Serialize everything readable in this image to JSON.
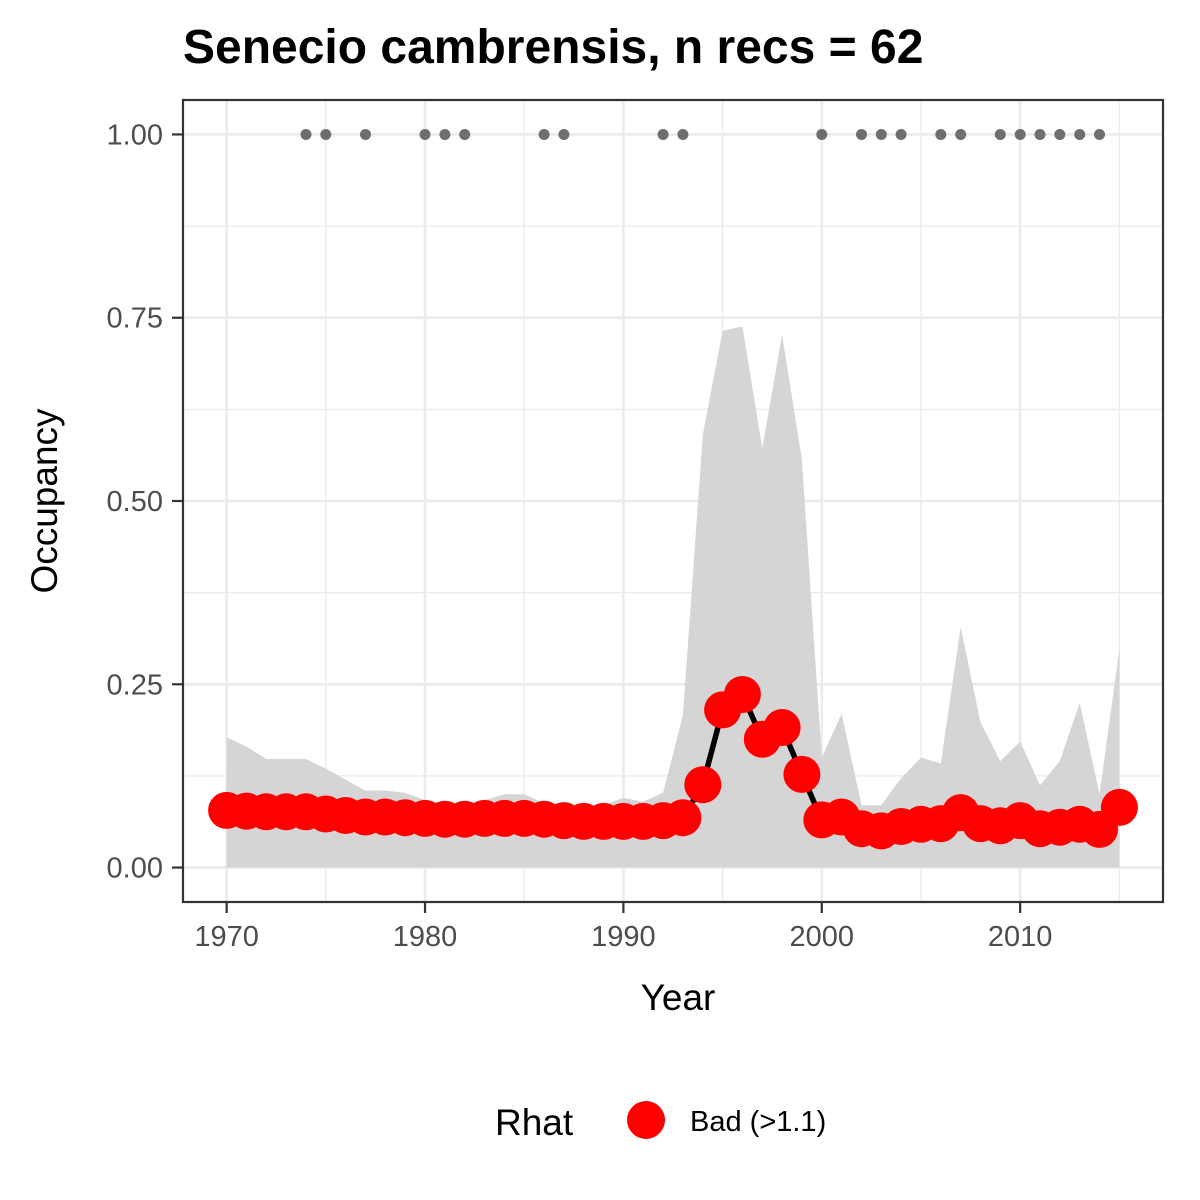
{
  "chart_data": {
    "type": "line",
    "title": "Senecio cambrensis, n recs = 62",
    "xlabel": "Year",
    "ylabel": "Occupancy",
    "xlim": [
      1967.8,
      1017.2
    ],
    "ylim": [
      -0.047,
      1.047
    ],
    "x_ticks": [
      1970,
      1980,
      1990,
      2000,
      2010
    ],
    "x_tick_labels": [
      "1970",
      "1980",
      "1990",
      "2000",
      "2010"
    ],
    "y_ticks": [
      0,
      0.25,
      0.5,
      0.75,
      1.0
    ],
    "y_tick_labels": [
      "0.00",
      "0.25",
      "0.50",
      "0.75",
      "1.00"
    ],
    "grid": true,
    "legend": {
      "title": "Rhat",
      "placement": "bottom",
      "entries": [
        {
          "label": "Bad (>1.1)",
          "color": "#ff0000"
        }
      ]
    },
    "colors": {
      "point": "#ff0000",
      "line": "#000000",
      "ribbon": "#d5d5d5",
      "record_dots": "#6e6e6e",
      "panel_border": "#333333",
      "grid": "#ebebeb"
    },
    "series": [
      {
        "x": [
          1970,
          1971,
          1972,
          1973,
          1974,
          1975,
          1976,
          1977,
          1978,
          1979,
          1980,
          1981,
          1982,
          1983,
          1984,
          1985,
          1986,
          1987,
          1988,
          1989,
          1990,
          1991,
          1992,
          1993,
          1994,
          1995,
          1996,
          1997,
          1998,
          1999,
          2000,
          2001,
          2002,
          2003,
          2004,
          2005,
          2006,
          2007,
          2008,
          2009,
          2010,
          2011,
          2012,
          2013,
          2014,
          2015
        ],
        "y": [
          0.078,
          0.077,
          0.076,
          0.076,
          0.076,
          0.073,
          0.071,
          0.069,
          0.069,
          0.068,
          0.067,
          0.066,
          0.066,
          0.067,
          0.067,
          0.067,
          0.066,
          0.064,
          0.063,
          0.063,
          0.063,
          0.063,
          0.064,
          0.068,
          0.113,
          0.215,
          0.236,
          0.175,
          0.191,
          0.127,
          0.065,
          0.069,
          0.053,
          0.05,
          0.056,
          0.059,
          0.06,
          0.075,
          0.06,
          0.057,
          0.064,
          0.053,
          0.055,
          0.059,
          0.052,
          0.082
        ],
        "lower": [
          0,
          0,
          0,
          0,
          0,
          0,
          0,
          0,
          0,
          0,
          0,
          0,
          0,
          0,
          0,
          0,
          0,
          0,
          0,
          0,
          0,
          0,
          0,
          0,
          0,
          0,
          0,
          0,
          0,
          0,
          0,
          0,
          0,
          0,
          0,
          0,
          0,
          0,
          0,
          0,
          0,
          0,
          0,
          0,
          0,
          0
        ],
        "upper": [
          0.178,
          0.165,
          0.148,
          0.148,
          0.148,
          0.135,
          0.12,
          0.105,
          0.105,
          0.102,
          0.092,
          0.088,
          0.088,
          0.092,
          0.1,
          0.1,
          0.088,
          0.085,
          0.085,
          0.085,
          0.095,
          0.09,
          0.102,
          0.208,
          0.59,
          0.732,
          0.738,
          0.572,
          0.727,
          0.557,
          0.15,
          0.21,
          0.085,
          0.085,
          0.122,
          0.15,
          0.142,
          0.328,
          0.198,
          0.145,
          0.172,
          0.112,
          0.145,
          0.225,
          0.1,
          0.298
        ]
      }
    ],
    "records": {
      "y": 1.0,
      "x": [
        1974,
        1975,
        1977,
        1980,
        1981,
        1982,
        1986,
        1987,
        1992,
        1993,
        2000,
        2002,
        2003,
        2004,
        2006,
        2007,
        2009,
        2010,
        2011,
        2012,
        2013,
        2014
      ]
    }
  }
}
